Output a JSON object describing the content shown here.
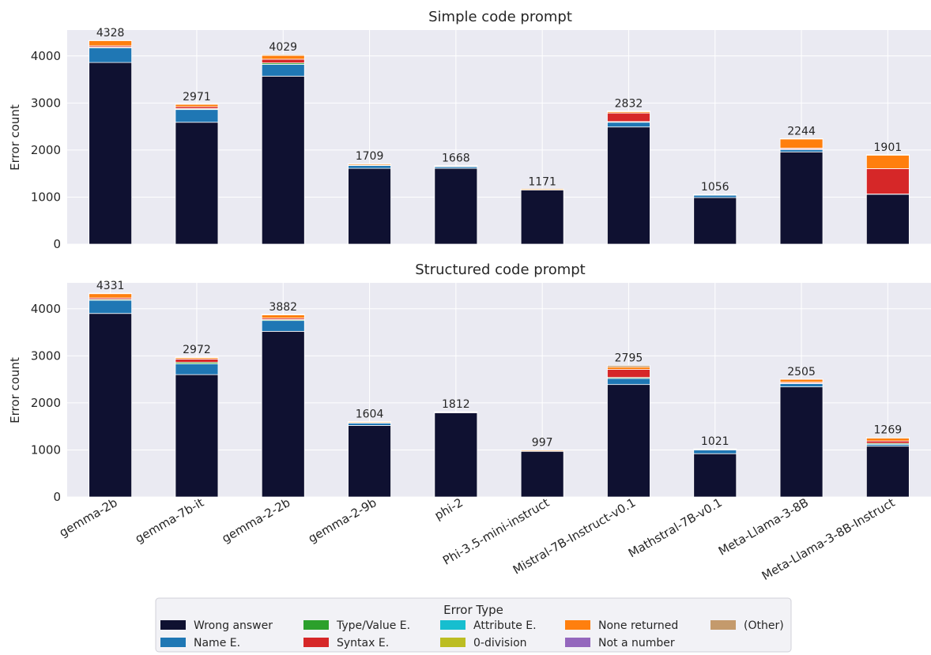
{
  "chart_data": [
    {
      "type": "bar",
      "stacked": true,
      "title": "Simple code prompt",
      "ylabel": "Error count",
      "ylim": [
        0,
        4550
      ],
      "yticks": [
        0,
        1000,
        2000,
        3000,
        4000
      ],
      "grid": true,
      "categories": [
        "gemma-2b",
        "gemma-7b-it",
        "gemma-2-2b",
        "gemma-2-9b",
        "phi-2",
        "Phi-3.5-mini-instruct",
        "Mistral-7B-Instruct-v0.1",
        "Mathstral-7B-v0.1",
        "Meta-Llama-3-8B",
        "Meta-Llama-3-8B-Instruct"
      ],
      "totals": [
        4328,
        2971,
        4029,
        1709,
        1668,
        1171,
        2832,
        1056,
        2244,
        1901
      ],
      "series": [
        {
          "name": "Wrong answer",
          "values": [
            3860,
            2590,
            3570,
            1610,
            1610,
            1150,
            2490,
            990,
            1960,
            1060
          ]
        },
        {
          "name": "Name E.",
          "values": [
            310,
            270,
            250,
            60,
            35,
            0,
            100,
            50,
            50,
            0
          ]
        },
        {
          "name": "Type/Value E.",
          "values": [
            15,
            15,
            30,
            5,
            5,
            0,
            15,
            0,
            10,
            5
          ]
        },
        {
          "name": "Attribute E.",
          "values": [
            0,
            5,
            0,
            0,
            0,
            0,
            0,
            0,
            0,
            0
          ]
        },
        {
          "name": "Syntax E.",
          "values": [
            30,
            40,
            80,
            5,
            0,
            0,
            180,
            0,
            20,
            540
          ]
        },
        {
          "name": "0-division",
          "values": [
            0,
            0,
            0,
            0,
            0,
            0,
            0,
            0,
            0,
            0
          ]
        },
        {
          "name": "None returned",
          "values": [
            110,
            50,
            80,
            25,
            15,
            21,
            30,
            10,
            195,
            286
          ]
        },
        {
          "name": "Not a number",
          "values": [
            0,
            0,
            0,
            0,
            0,
            0,
            10,
            0,
            0,
            0
          ]
        },
        {
          "name": "(Other)",
          "values": [
            3,
            1,
            19,
            4,
            3,
            0,
            7,
            6,
            9,
            10
          ]
        }
      ]
    },
    {
      "type": "bar",
      "stacked": true,
      "title": "Structured code prompt",
      "ylabel": "Error count",
      "ylim": [
        0,
        4550
      ],
      "yticks": [
        0,
        1000,
        2000,
        3000,
        4000
      ],
      "grid": true,
      "categories": [
        "gemma-2b",
        "gemma-7b-it",
        "gemma-2-2b",
        "gemma-2-9b",
        "phi-2",
        "Phi-3.5-mini-instruct",
        "Mistral-7B-Instruct-v0.1",
        "Mathstral-7B-v0.1",
        "Meta-Llama-3-8B",
        "Meta-Llama-3-8B-Instruct"
      ],
      "totals": [
        4331,
        2972,
        3882,
        1604,
        1812,
        997,
        2795,
        1021,
        2505,
        1269
      ],
      "series": [
        {
          "name": "Wrong answer",
          "values": [
            3900,
            2600,
            3520,
            1520,
            1790,
            970,
            2390,
            920,
            2340,
            1080
          ]
        },
        {
          "name": "Name E.",
          "values": [
            280,
            230,
            230,
            50,
            0,
            0,
            130,
            80,
            70,
            40
          ]
        },
        {
          "name": "Type/Value E.",
          "values": [
            20,
            30,
            20,
            5,
            0,
            0,
            20,
            0,
            10,
            20
          ]
        },
        {
          "name": "Attribute E.",
          "values": [
            0,
            0,
            0,
            0,
            0,
            0,
            0,
            0,
            0,
            0
          ]
        },
        {
          "name": "Syntax E.",
          "values": [
            30,
            70,
            30,
            0,
            0,
            0,
            170,
            0,
            20,
            50
          ]
        },
        {
          "name": "0-division",
          "values": [
            0,
            0,
            0,
            0,
            0,
            0,
            0,
            0,
            0,
            0
          ]
        },
        {
          "name": "None returned",
          "values": [
            90,
            30,
            70,
            20,
            15,
            20,
            50,
            15,
            60,
            60
          ]
        },
        {
          "name": "Not a number",
          "values": [
            0,
            0,
            0,
            0,
            0,
            0,
            0,
            0,
            0,
            0
          ]
        },
        {
          "name": "(Other)",
          "values": [
            11,
            12,
            12,
            9,
            7,
            7,
            35,
            6,
            5,
            19
          ]
        }
      ]
    }
  ],
  "legend": {
    "title": "Error Type",
    "entries": [
      {
        "name": "Wrong answer",
        "color": "#0f1131"
      },
      {
        "name": "Name E.",
        "color": "#1f77b4"
      },
      {
        "name": "Type/Value E.",
        "color": "#2ca02c"
      },
      {
        "name": "Syntax E.",
        "color": "#d62728"
      },
      {
        "name": "Attribute E.",
        "color": "#17becf"
      },
      {
        "name": "0-division",
        "color": "#bcbd22"
      },
      {
        "name": "None returned",
        "color": "#ff7f0e"
      },
      {
        "name": "Not a number",
        "color": "#9467bd"
      },
      {
        "name": "(Other)",
        "color": "#c49a6c"
      }
    ]
  },
  "colors": {
    "Wrong answer": "#0f1131",
    "Name E.": "#1f77b4",
    "Type/Value E.": "#2ca02c",
    "Attribute E.": "#17becf",
    "Syntax E.": "#d62728",
    "0-division": "#bcbd22",
    "None returned": "#ff7f0e",
    "Not a number": "#9467bd",
    "(Other)": "#c49a6c"
  }
}
